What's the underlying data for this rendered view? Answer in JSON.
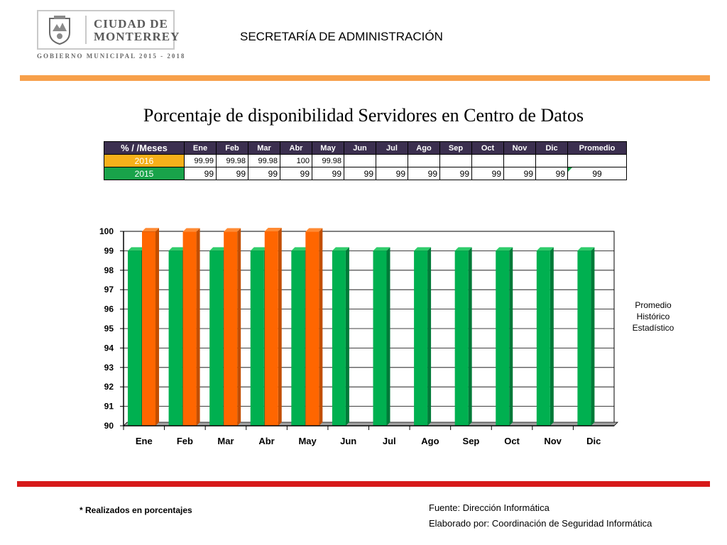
{
  "header": {
    "logo_line1": "CIUDAD DE",
    "logo_line2": "MONTERREY",
    "logo_gov": "GOBIERNO MUNICIPAL 2015 - 2018",
    "department": "SECRETARÍA DE ADMINISTRACIÓN"
  },
  "title": "Porcentaje de disponibilidad Servidores en Centro de Datos",
  "table": {
    "corner": "% / /Meses",
    "months": [
      "Ene",
      "Feb",
      "Mar",
      "Abr",
      "May",
      "Jun",
      "Jul",
      "Ago",
      "Sep",
      "Oct",
      "Nov",
      "Dic"
    ],
    "avg_label": "Promedio",
    "rows": [
      {
        "year": "2016",
        "values": [
          "99.99",
          "99.98",
          "99.98",
          "100",
          "99.98",
          "",
          "",
          "",
          "",
          "",
          "",
          ""
        ],
        "avg": ""
      },
      {
        "year": "2015",
        "values": [
          "99",
          "99",
          "99",
          "99",
          "99",
          "99",
          "99",
          "99",
          "99",
          "99",
          "99",
          "99"
        ],
        "avg": "99"
      }
    ]
  },
  "colors": {
    "s2015": "#00b050",
    "s2016": "#ff6600",
    "header_bg": "#3b2f4f",
    "orange_bar": "#f7a04a",
    "red_bar": "#d71a1a"
  },
  "chart_data": {
    "type": "bar",
    "categories": [
      "Ene",
      "Feb",
      "Mar",
      "Abr",
      "May",
      "Jun",
      "Jul",
      "Ago",
      "Sep",
      "Oct",
      "Nov",
      "Dic"
    ],
    "series": [
      {
        "name": "2015",
        "values": [
          99,
          99,
          99,
          99,
          99,
          99,
          99,
          99,
          99,
          99,
          99,
          99
        ]
      },
      {
        "name": "2016",
        "values": [
          99.99,
          99.98,
          99.98,
          100,
          99.98,
          null,
          null,
          null,
          null,
          null,
          null,
          null
        ]
      }
    ],
    "yticks": [
      90,
      91,
      92,
      93,
      94,
      95,
      96,
      97,
      98,
      99,
      100
    ],
    "ylim": [
      90,
      100
    ],
    "legend_text": [
      "Promedio",
      "Histórico",
      "Estadístico"
    ]
  },
  "footer": {
    "note": "* Realizados en porcentajes",
    "source": "Fuente: Dirección  Informática",
    "prepared": "Elaborado por: Coordinación de Seguridad Informática"
  }
}
